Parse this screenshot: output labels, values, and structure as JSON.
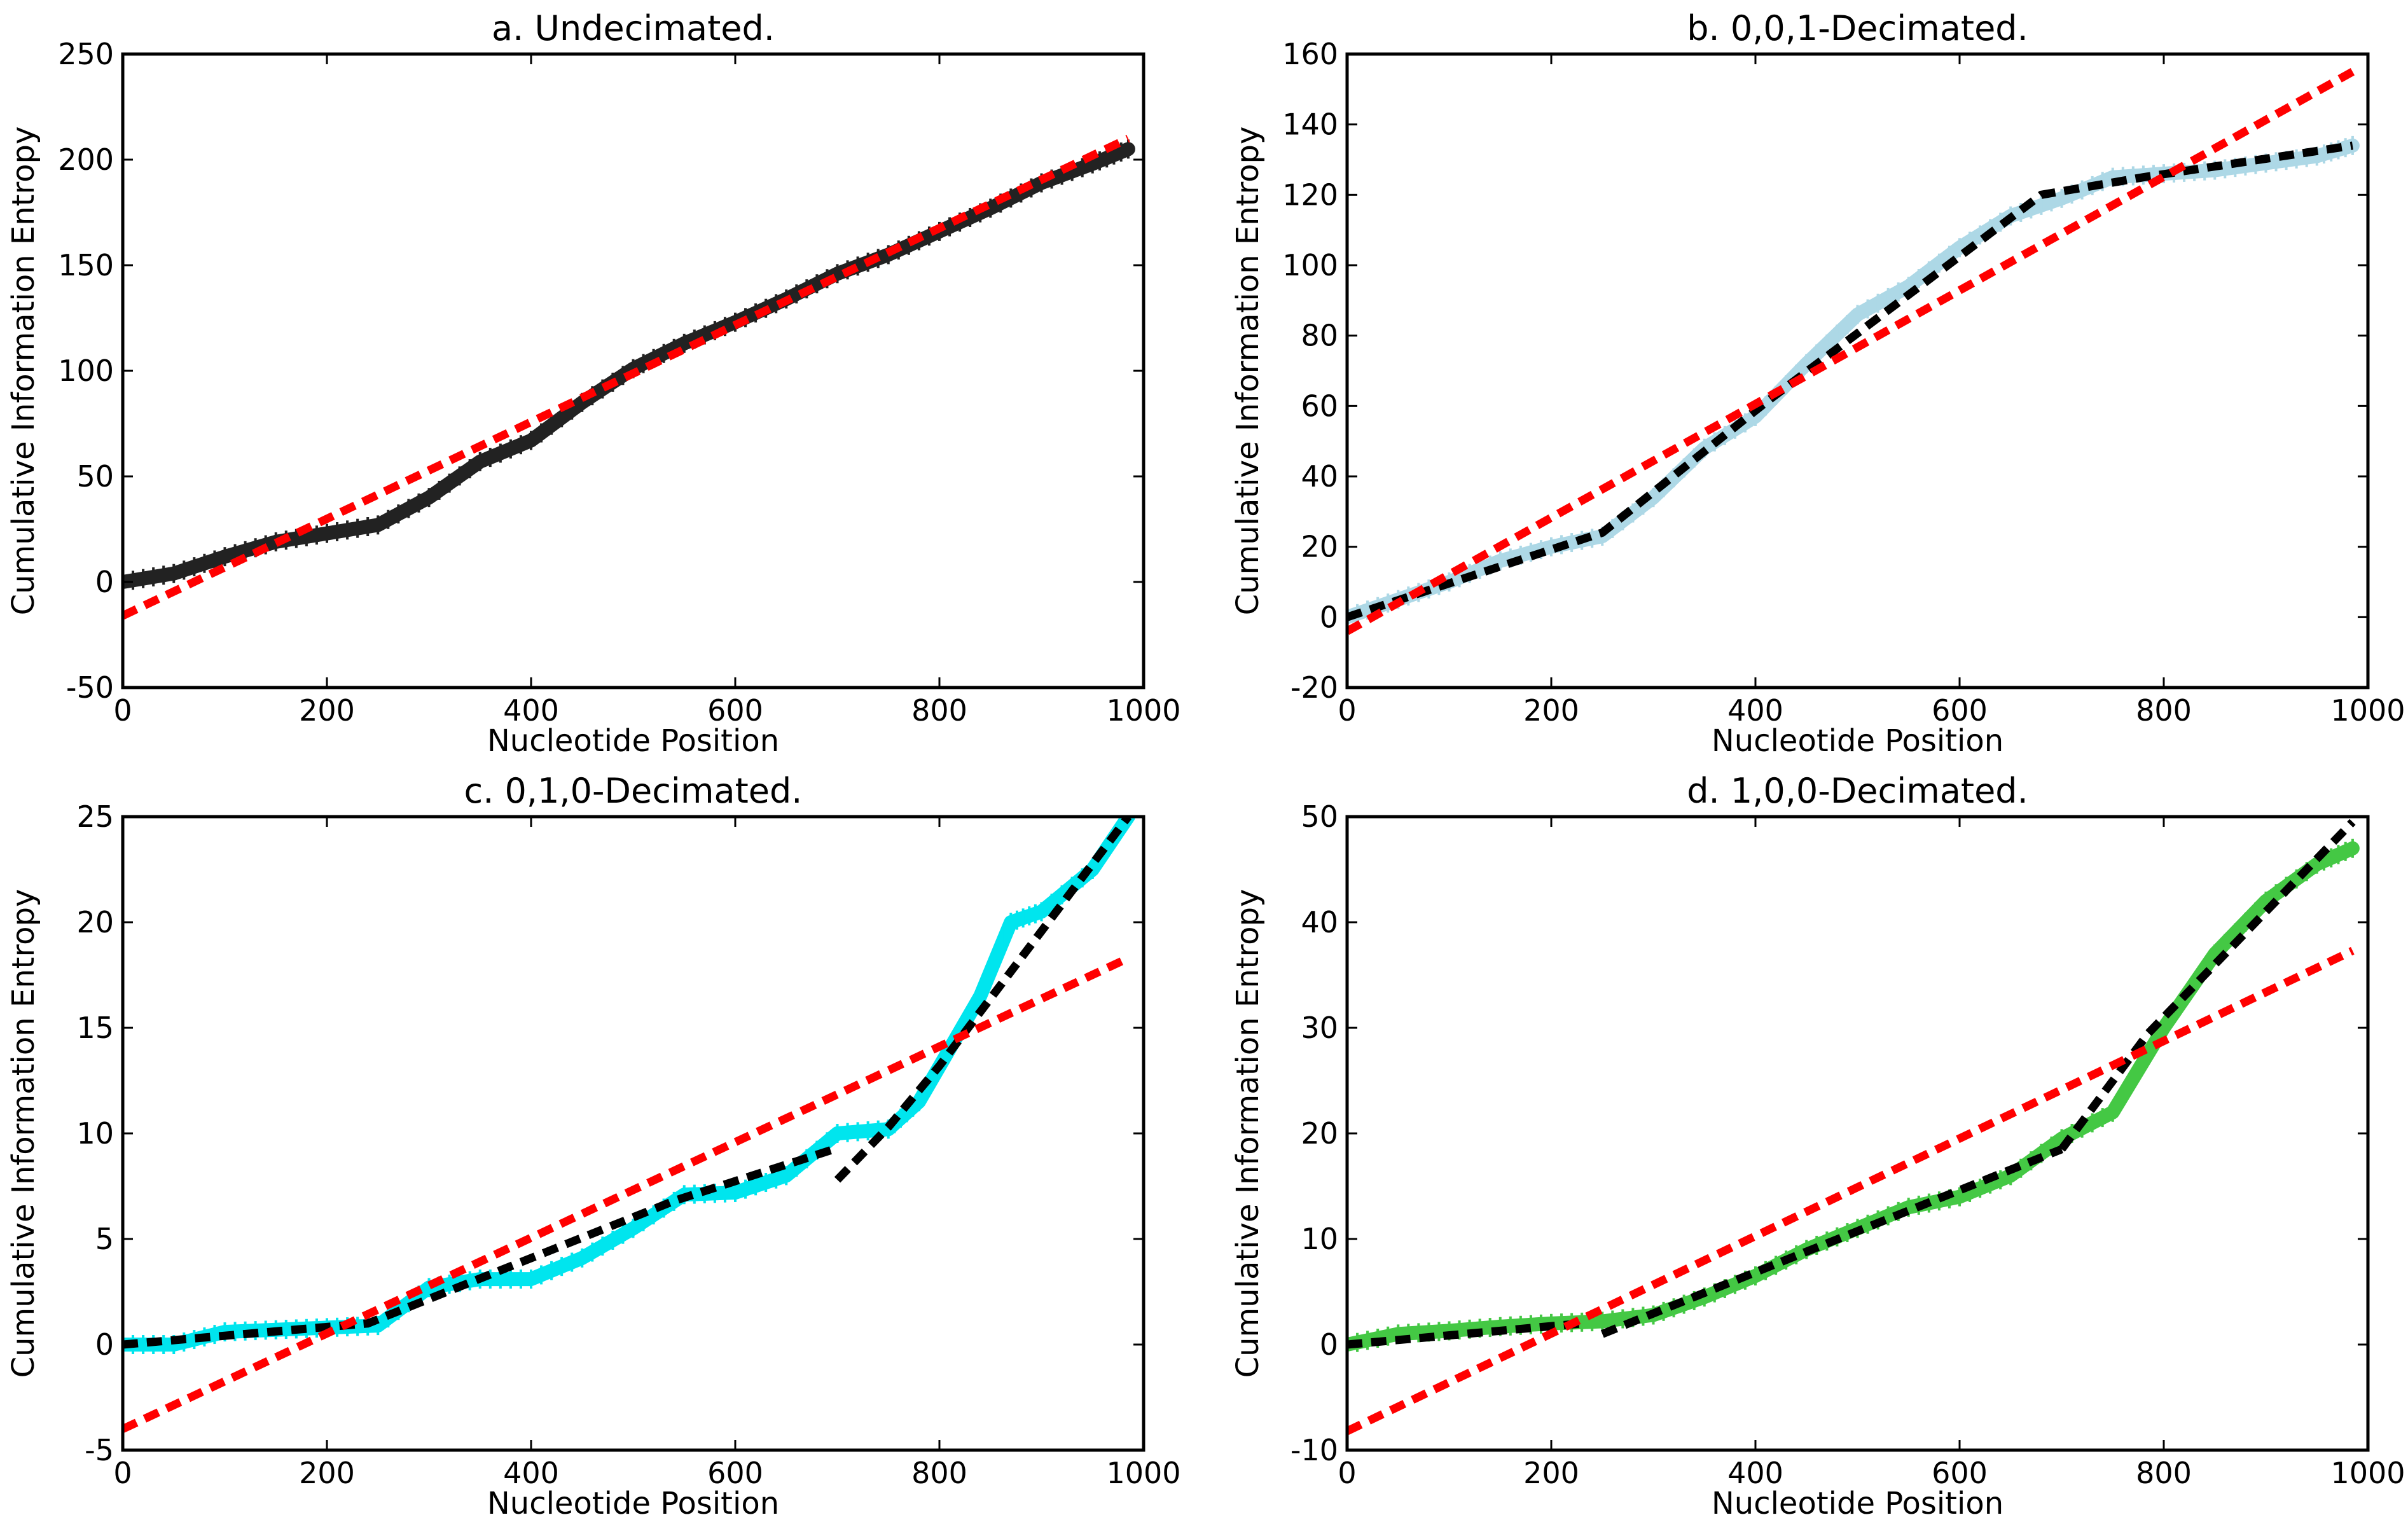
{
  "chart_data": [
    {
      "type": "line",
      "title": "a. Undecimated.",
      "xlabel": "Nucleotide Position",
      "ylabel": "Cumulative Information Entropy",
      "xlim": [
        0,
        1000
      ],
      "ylim": [
        -50,
        250
      ],
      "xticks": [
        "0",
        "200",
        "400",
        "600",
        "800",
        "1000"
      ],
      "yticks": [
        "-50",
        "0",
        "50",
        "100",
        "150",
        "200",
        "250"
      ],
      "series": [
        {
          "name": "cumulative entropy",
          "style": "markers",
          "color": "#222222",
          "x": [
            0,
            50,
            100,
            150,
            200,
            250,
            300,
            350,
            400,
            450,
            500,
            550,
            600,
            650,
            700,
            750,
            800,
            850,
            900,
            950,
            985
          ],
          "y": [
            0,
            4,
            12,
            19,
            23,
            27,
            40,
            57,
            67,
            85,
            101,
            113,
            123,
            134,
            146,
            155,
            166,
            177,
            189,
            198,
            205
          ]
        },
        {
          "name": "linear fit",
          "style": "dashed",
          "color": "#ff0000",
          "x": [
            0,
            985
          ],
          "y": [
            -16,
            210
          ]
        }
      ]
    },
    {
      "type": "line",
      "title": "b. 0,0,1-Decimated.",
      "xlabel": "Nucleotide Position",
      "ylabel": "Cumulative Information Entropy",
      "xlim": [
        0,
        1000
      ],
      "ylim": [
        -20,
        160
      ],
      "xticks": [
        "0",
        "200",
        "400",
        "600",
        "800",
        "1000"
      ],
      "yticks": [
        "-20",
        "0",
        "20",
        "40",
        "60",
        "80",
        "100",
        "120",
        "140",
        "160"
      ],
      "series": [
        {
          "name": "cumulative entropy",
          "style": "markers",
          "color": "#add8e6",
          "x": [
            0,
            50,
            100,
            150,
            200,
            250,
            300,
            350,
            400,
            450,
            500,
            550,
            600,
            650,
            700,
            750,
            800,
            850,
            900,
            950,
            985
          ],
          "y": [
            0,
            5,
            10,
            16,
            20,
            23,
            34,
            48,
            57,
            72,
            86,
            94,
            105,
            114,
            119,
            125,
            126,
            127,
            129,
            131,
            134
          ]
        },
        {
          "name": "segmented fit",
          "style": "dashed",
          "color": "#000000",
          "x": [
            0,
            250,
            410,
            680,
            780,
            985
          ],
          "y": [
            0,
            24,
            61,
            120,
            125,
            134
          ]
        },
        {
          "name": "linear fit",
          "style": "dashed",
          "color": "#ff0000",
          "x": [
            0,
            985
          ],
          "y": [
            -4,
            155
          ]
        }
      ]
    },
    {
      "type": "line",
      "title": "c. 0,1,0-Decimated.",
      "xlabel": "Nucleotide Position",
      "ylabel": "Cumulative Information Entropy",
      "xlim": [
        0,
        1000
      ],
      "ylim": [
        -5,
        25
      ],
      "xticks": [
        "0",
        "200",
        "400",
        "600",
        "800",
        "1000"
      ],
      "yticks": [
        "-5",
        "0",
        "5",
        "10",
        "15",
        "20",
        "25"
      ],
      "series": [
        {
          "name": "cumulative entropy",
          "style": "markers",
          "color": "#00e5ee",
          "x": [
            0,
            50,
            100,
            150,
            200,
            250,
            300,
            350,
            400,
            450,
            500,
            550,
            600,
            650,
            700,
            750,
            780,
            810,
            840,
            870,
            900,
            950,
            985
          ],
          "y": [
            0,
            0,
            0.6,
            0.7,
            0.8,
            0.9,
            2.7,
            3.1,
            3.1,
            4.1,
            5.5,
            7.1,
            7.2,
            8.0,
            10.0,
            10.2,
            11.5,
            14.0,
            16.5,
            20.0,
            20.5,
            22.5,
            25
          ]
        },
        {
          "name": "segmented fit",
          "style": "dashed",
          "color": "#000000",
          "x": [
            0,
            240,
            540,
            700
          ],
          "y": [
            0,
            1.0,
            6.8,
            9.3
          ]
        },
        {
          "name": "segmented fit (upper)",
          "style": "dashed",
          "color": "#000000",
          "x": [
            700,
            750,
            800,
            985
          ],
          "y": [
            7.8,
            10.3,
            13.2,
            25
          ]
        },
        {
          "name": "linear fit",
          "style": "dashed",
          "color": "#ff0000",
          "x": [
            0,
            985
          ],
          "y": [
            -4,
            18.3
          ]
        }
      ]
    },
    {
      "type": "line",
      "title": "d. 1,0,0-Decimated.",
      "xlabel": "Nucleotide Position",
      "ylabel": "Cumulative Information Entropy",
      "xlim": [
        0,
        1000
      ],
      "ylim": [
        -10,
        50
      ],
      "xticks": [
        "0",
        "200",
        "400",
        "600",
        "800",
        "1000"
      ],
      "yticks": [
        "-10",
        "0",
        "10",
        "20",
        "30",
        "40",
        "50"
      ],
      "series": [
        {
          "name": "cumulative entropy",
          "style": "markers",
          "color": "#44c844",
          "x": [
            0,
            50,
            100,
            150,
            200,
            250,
            300,
            350,
            400,
            450,
            500,
            550,
            600,
            650,
            700,
            750,
            800,
            850,
            900,
            950,
            985
          ],
          "y": [
            0,
            1,
            1.3,
            1.7,
            2,
            2.2,
            2.8,
            4.5,
            6.5,
            9,
            11,
            13,
            14,
            16,
            19.5,
            22,
            30,
            37,
            42,
            45.5,
            47
          ]
        },
        {
          "name": "segmented fit",
          "style": "dashed",
          "color": "#000000",
          "x": [
            0,
            230
          ],
          "y": [
            0,
            2
          ]
        },
        {
          "name": "segmented fit (middle)",
          "style": "dashed",
          "color": "#000000",
          "x": [
            250,
            450,
            700
          ],
          "y": [
            1.0,
            8.8,
            18.5
          ]
        },
        {
          "name": "segmented fit (upper)",
          "style": "dashed",
          "color": "#000000",
          "x": [
            700,
            785,
            985
          ],
          "y": [
            18.5,
            29.5,
            49.5
          ]
        },
        {
          "name": "linear fit",
          "style": "dashed",
          "color": "#ff0000",
          "x": [
            0,
            985
          ],
          "y": [
            -8.2,
            37.3
          ]
        }
      ]
    }
  ]
}
